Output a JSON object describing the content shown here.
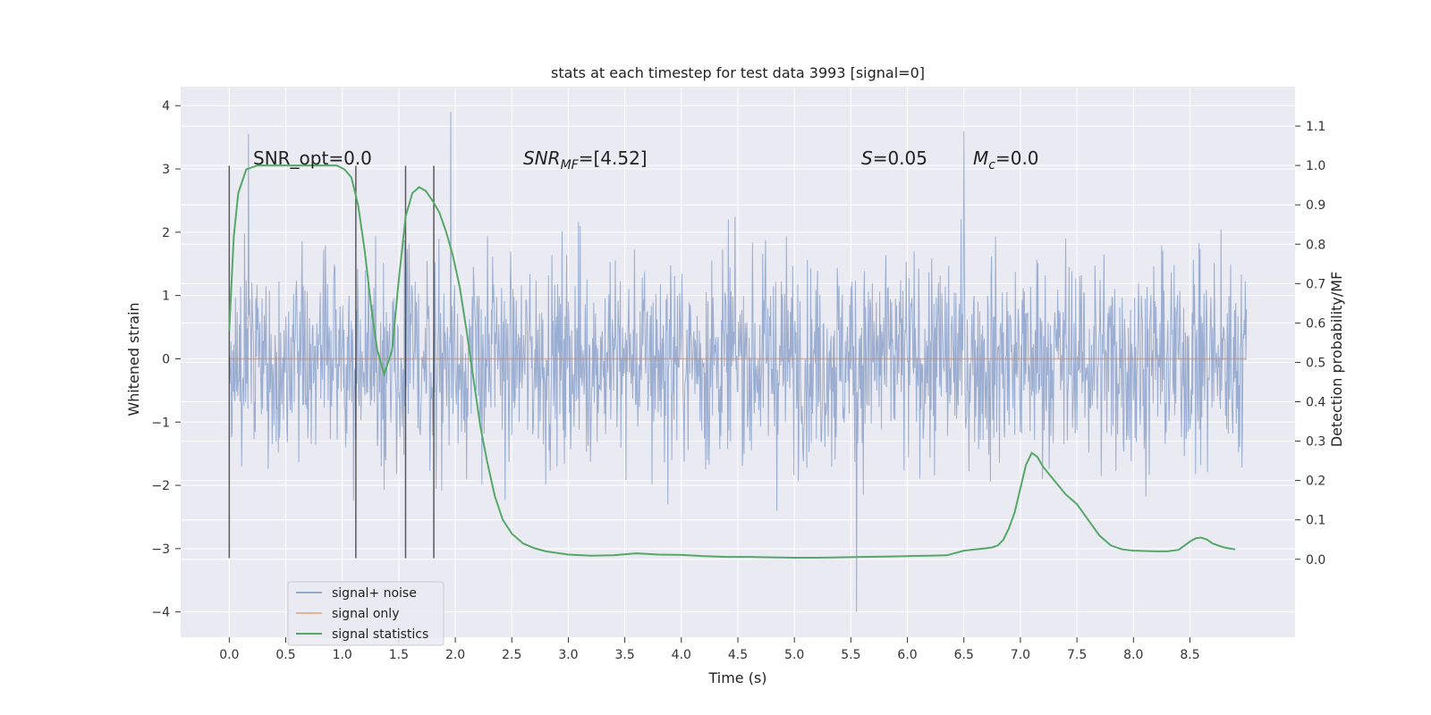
{
  "chart_data": {
    "type": "line",
    "title": "stats at each timestep for test data 3993 [signal=0]",
    "xlabel": "Time (s)",
    "ylabel": "Whitened strain",
    "ylabel_right": "Detection probability/MF",
    "xlim": [
      -0.43,
      9.43
    ],
    "ylim": [
      -4.4,
      4.3
    ],
    "ylim_right": [
      -0.198,
      1.2
    ],
    "x_ticks": [
      "0.0",
      "0.5",
      "1.0",
      "1.5",
      "2.0",
      "2.5",
      "3.0",
      "3.5",
      "4.0",
      "4.5",
      "5.0",
      "5.5",
      "6.0",
      "6.5",
      "7.0",
      "7.5",
      "8.0",
      "8.5"
    ],
    "y_ticks": [
      "4",
      "3",
      "2",
      "1",
      "0",
      "−1",
      "−2",
      "−3",
      "−4"
    ],
    "y_ticks_right": [
      "1.1",
      "1.0",
      "0.9",
      "0.8",
      "0.7",
      "0.6",
      "0.5",
      "0.4",
      "0.3",
      "0.2",
      "0.1",
      "0.0"
    ],
    "grid": true,
    "legend_position": "lower-left",
    "annotations": {
      "snr_opt": "SNR_opt=0.0",
      "snr_mf_prefix": "SNR",
      "snr_mf_sub": "MF",
      "snr_mf_value": "=[4.52]",
      "s_symbol": "S",
      "s_value": "=0.05",
      "mc_symbol": "M",
      "mc_sub": "c",
      "mc_value": "=0.0"
    },
    "vertical_markers": [
      0.0,
      1.12,
      1.56,
      1.81
    ],
    "vertical_marker_range": [
      -3.15,
      3.05
    ],
    "colors": {
      "noise": "#4c72b0",
      "signal": "#dd8452",
      "statistics": "#55a868",
      "marker": "#333333",
      "plot_bg": "#eaeaf2",
      "grid": "#ffffff"
    },
    "series": [
      {
        "name": "signal+ noise",
        "axis": "left",
        "description": "whitened noise time series sampled across 0.0–9.0 s, mostly within ±2, peaks to about 3.9 near t=2.0 and −4.0 near t=5.55",
        "x_range": [
          0.0,
          9.0
        ],
        "extremes": [
          {
            "x": 1.96,
            "y": 3.9
          },
          {
            "x": 5.55,
            "y": -4.0
          },
          {
            "x": 6.5,
            "y": 3.6
          },
          {
            "x": 0.17,
            "y": 3.55
          }
        ]
      },
      {
        "name": "signal only",
        "axis": "left",
        "x": [
          0.0,
          9.0
        ],
        "y": [
          0.0,
          0.0
        ]
      },
      {
        "name": "signal statistics",
        "axis": "right",
        "x": [
          0.0,
          0.04,
          0.08,
          0.15,
          0.25,
          0.4,
          0.6,
          0.8,
          0.95,
          1.02,
          1.08,
          1.14,
          1.2,
          1.26,
          1.31,
          1.37,
          1.44,
          1.5,
          1.56,
          1.62,
          1.68,
          1.74,
          1.8,
          1.86,
          1.92,
          1.98,
          2.04,
          2.1,
          2.16,
          2.22,
          2.28,
          2.35,
          2.42,
          2.5,
          2.6,
          2.7,
          2.8,
          3.0,
          3.2,
          3.4,
          3.6,
          3.8,
          4.0,
          4.2,
          4.4,
          4.6,
          4.8,
          5.0,
          5.2,
          5.4,
          5.6,
          5.8,
          6.0,
          6.2,
          6.35,
          6.5,
          6.6,
          6.7,
          6.75,
          6.8,
          6.85,
          6.9,
          6.95,
          7.0,
          7.05,
          7.1,
          7.15,
          7.2,
          7.3,
          7.4,
          7.5,
          7.6,
          7.7,
          7.8,
          7.9,
          8.0,
          8.1,
          8.2,
          8.3,
          8.4,
          8.5,
          8.55,
          8.6,
          8.65,
          8.7,
          8.8,
          8.9
        ],
        "y": [
          0.58,
          0.82,
          0.93,
          0.99,
          1.0,
          1.0,
          1.0,
          1.0,
          1.0,
          0.99,
          0.97,
          0.9,
          0.78,
          0.63,
          0.53,
          0.47,
          0.53,
          0.71,
          0.87,
          0.93,
          0.945,
          0.935,
          0.91,
          0.88,
          0.83,
          0.77,
          0.69,
          0.58,
          0.46,
          0.34,
          0.25,
          0.16,
          0.1,
          0.065,
          0.04,
          0.028,
          0.02,
          0.012,
          0.009,
          0.01,
          0.015,
          0.012,
          0.011,
          0.008,
          0.006,
          0.006,
          0.005,
          0.004,
          0.004,
          0.005,
          0.006,
          0.007,
          0.008,
          0.009,
          0.01,
          0.022,
          0.025,
          0.028,
          0.03,
          0.035,
          0.05,
          0.08,
          0.12,
          0.18,
          0.24,
          0.27,
          0.26,
          0.235,
          0.2,
          0.165,
          0.14,
          0.1,
          0.06,
          0.035,
          0.025,
          0.022,
          0.021,
          0.02,
          0.02,
          0.024,
          0.045,
          0.053,
          0.055,
          0.05,
          0.04,
          0.03,
          0.025
        ]
      }
    ]
  }
}
